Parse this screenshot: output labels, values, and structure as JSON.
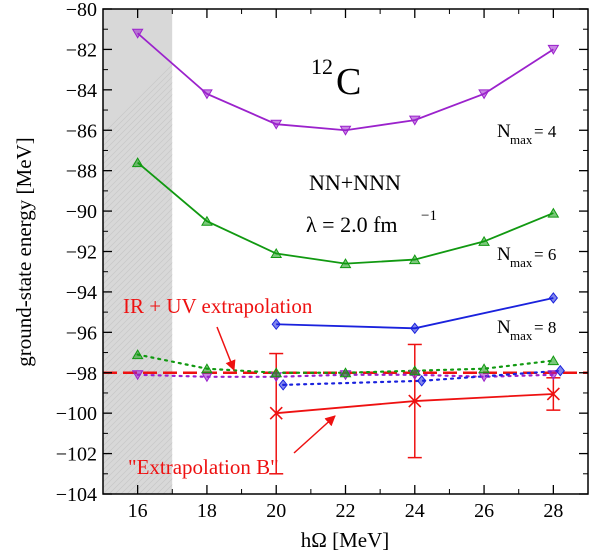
{
  "chart_data": {
    "type": "line",
    "xlabel": "hΩ [MeV]",
    "ylabel": "ground-state energy [MeV]",
    "xlim": [
      15,
      29
    ],
    "ylim": [
      -104,
      -80
    ],
    "xticks": [
      16,
      18,
      20,
      22,
      24,
      26,
      28
    ],
    "xtick_labels": [
      "16",
      "18",
      "20",
      "22",
      "24",
      "26",
      "28"
    ],
    "yticks": [
      -104,
      -102,
      -100,
      -98,
      -96,
      -94,
      -92,
      -90,
      -88,
      -86,
      -84,
      -82,
      -80
    ],
    "ytick_labels": [
      "−104",
      "−102",
      "−100",
      "−98",
      "−96",
      "−94",
      "−92",
      "−90",
      "−88",
      "−86",
      "−84",
      "−82",
      "−80"
    ],
    "shaded_region": {
      "x": [
        15,
        17
      ],
      "color": "#d8d8d8"
    },
    "reference_line": {
      "y": -98.0,
      "color": "#ee1111",
      "style": "dashed"
    },
    "series": [
      {
        "key": "nmax4",
        "color": "#9b22cc",
        "marker": "triangle-down",
        "style": "solid",
        "x": [
          16,
          18,
          20,
          22,
          24,
          26,
          28
        ],
        "y": [
          -81.2,
          -84.2,
          -85.7,
          -86.0,
          -85.5,
          -84.2,
          -82.0
        ]
      },
      {
        "key": "nmax6",
        "color": "#119911",
        "marker": "triangle-up",
        "style": "solid",
        "x": [
          16,
          18,
          20,
          22,
          24,
          26,
          28
        ],
        "y": [
          -87.6,
          -90.5,
          -92.1,
          -92.6,
          -92.4,
          -91.5,
          -90.1
        ]
      },
      {
        "key": "nmax8",
        "color": "#1a22dd",
        "marker": "diamond",
        "style": "solid",
        "x": [
          20,
          24,
          28
        ],
        "y": [
          -95.6,
          -95.8,
          -94.3
        ]
      },
      {
        "key": "extrap4",
        "color": "#9b22cc",
        "marker": "triangle-down",
        "style": "dotted",
        "x": [
          16,
          18,
          20,
          22,
          24,
          26,
          28
        ],
        "y": [
          -98.1,
          -98.2,
          -98.2,
          -98.1,
          -98.1,
          -98.2,
          -98.1
        ]
      },
      {
        "key": "extrap6",
        "color": "#119911",
        "marker": "triangle-up",
        "style": "dotted",
        "x": [
          16,
          18,
          20,
          22,
          24,
          26,
          28
        ],
        "y": [
          -97.1,
          -97.8,
          -98.0,
          -98.0,
          -97.9,
          -97.8,
          -97.4
        ]
      },
      {
        "key": "extrap8",
        "color": "#1a22dd",
        "marker": "diamond",
        "style": "dotted",
        "x": [
          20.2,
          24.2,
          28.2
        ],
        "y": [
          -98.6,
          -98.4,
          -97.9
        ]
      },
      {
        "key": "extrapB",
        "color": "#ee1111",
        "marker": "x-cross",
        "style": "solid",
        "x": [
          20,
          24,
          28
        ],
        "y": [
          -100.0,
          -99.4,
          -99.05
        ],
        "err_low": [
          -103.0,
          -102.2,
          -99.85
        ],
        "err_high": [
          -97.05,
          -96.6,
          -98.25
        ]
      }
    ],
    "annotations": {
      "nucleus_mass": "12",
      "nucleus_symbol": "C",
      "interaction": "NN+NNN",
      "lambda_text": "λ = 2.0 fm",
      "lambda_exp": "−1",
      "nmax_base": "N",
      "nmax_sub": "max",
      "nmax4_value": " = 4",
      "nmax6_value": " = 6",
      "nmax8_value": " = 8",
      "ir_uv_label": "IR + UV extrapolation",
      "extrap_b_label": "\"Extrapolation B\""
    }
  }
}
